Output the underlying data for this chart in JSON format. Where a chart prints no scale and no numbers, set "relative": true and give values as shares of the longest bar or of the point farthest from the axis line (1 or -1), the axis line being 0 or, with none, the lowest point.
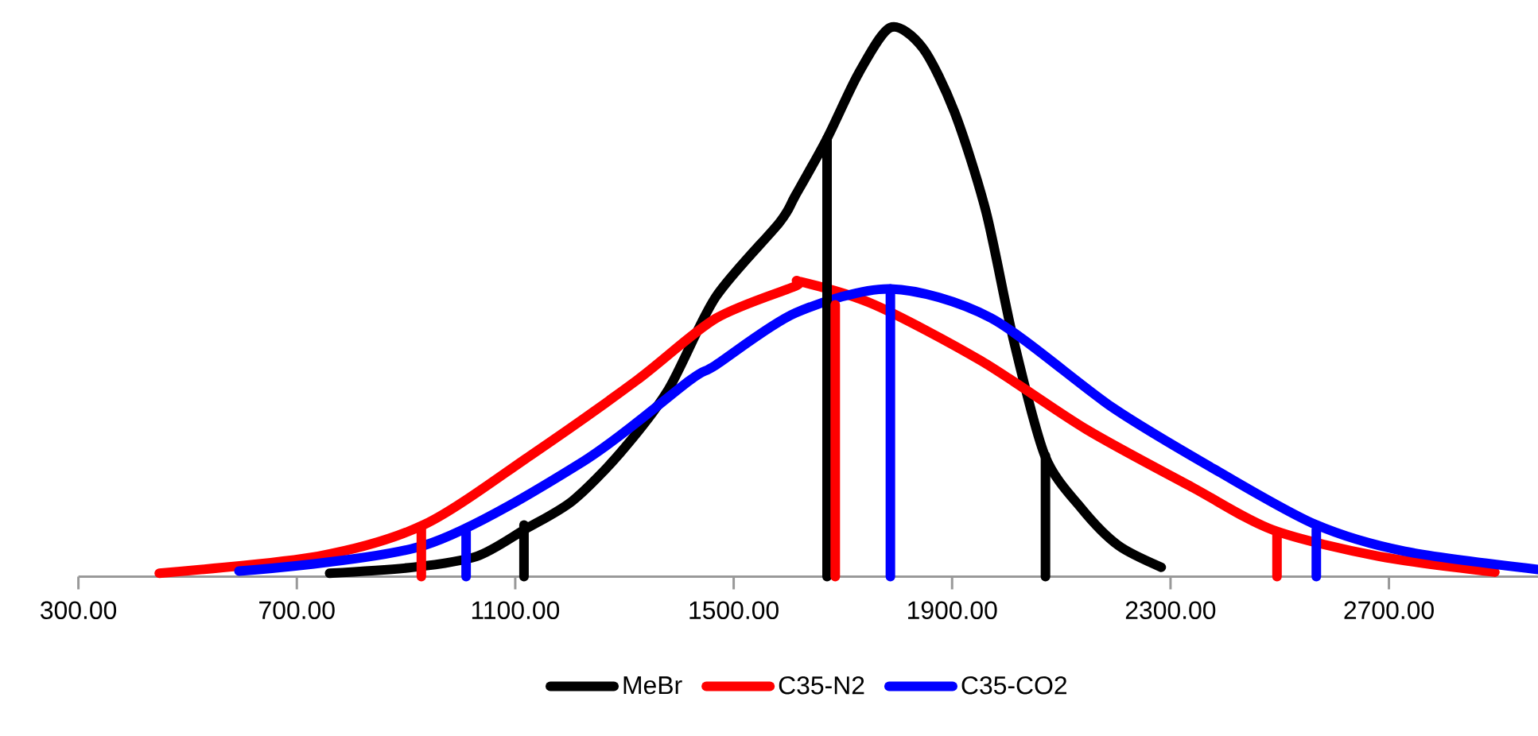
{
  "chart_data": {
    "type": "line",
    "relative": true,
    "legend": "bottom",
    "xlim": [
      300,
      2973
    ],
    "xticks": [
      {
        "value": 300,
        "label": "300.00"
      },
      {
        "value": 700,
        "label": "700.00"
      },
      {
        "value": 1100,
        "label": "1100.00"
      },
      {
        "value": 1500,
        "label": "1500.00"
      },
      {
        "value": 1900,
        "label": "1900.00"
      },
      {
        "value": 2300,
        "label": "2300.00"
      },
      {
        "value": 2700,
        "label": "2700.00"
      }
    ],
    "series": [
      {
        "name": "MeBr",
        "color": "#000000",
        "x": [
          760,
          914,
          1030,
          1118,
          1205,
          1292,
          1380,
          1467,
          1584,
          1613,
          1671,
          1729,
          1787,
          1846,
          1904,
          1962,
          2012,
          2070,
          2137,
          2204,
          2283
        ],
        "values": [
          0.006,
          0.017,
          0.037,
          0.086,
          0.138,
          0.225,
          0.34,
          0.509,
          0.645,
          0.694,
          0.798,
          0.917,
          1.0,
          0.963,
          0.847,
          0.665,
          0.433,
          0.22,
          0.124,
          0.057,
          0.017
        ]
      },
      {
        "name": "C35-N2",
        "color": "#ff0000",
        "x": [
          448,
          739,
          934,
          1127,
          1322,
          1467,
          1613,
          1622,
          1758,
          1953,
          2146,
          2341,
          2487,
          2681,
          2894
        ],
        "values": [
          0.006,
          0.037,
          0.095,
          0.22,
          0.357,
          0.47,
          0.529,
          0.537,
          0.495,
          0.393,
          0.268,
          0.162,
          0.085,
          0.037,
          0.008
        ]
      },
      {
        "name": "C35-CO2",
        "color": "#0000ff",
        "x": [
          594,
          934,
          1225,
          1419,
          1467,
          1613,
          1787,
          1971,
          2195,
          2390,
          2565,
          2729,
          2973
        ],
        "values": [
          0.01,
          0.057,
          0.21,
          0.357,
          0.385,
          0.48,
          0.524,
          0.471,
          0.307,
          0.19,
          0.095,
          0.046,
          0.013
        ]
      },
      {
        "color": "#000000",
        "x": [
          1116,
          1116
        ],
        "values": [
          0,
          0.094
        ]
      },
      {
        "color": "#000000",
        "x": [
          1671,
          1671
        ],
        "values": [
          0,
          0.798
        ]
      },
      {
        "color": "#000000",
        "x": [
          2071,
          2071
        ],
        "values": [
          0,
          0.22
        ]
      },
      {
        "color": "#ff0000",
        "x": [
          928,
          928
        ],
        "values": [
          0,
          0.086
        ]
      },
      {
        "color": "#ff0000",
        "x": [
          1686,
          1686
        ],
        "values": [
          0,
          0.495
        ]
      },
      {
        "color": "#ff0000",
        "x": [
          2495,
          2495
        ],
        "values": [
          0,
          0.075
        ]
      },
      {
        "color": "#0000ff",
        "x": [
          1010,
          1010
        ],
        "values": [
          0,
          0.086
        ]
      },
      {
        "color": "#0000ff",
        "x": [
          1787,
          1787
        ],
        "values": [
          0,
          0.524
        ]
      },
      {
        "color": "#0000ff",
        "x": [
          2567,
          2567
        ],
        "values": [
          0,
          0.086
        ]
      }
    ]
  }
}
